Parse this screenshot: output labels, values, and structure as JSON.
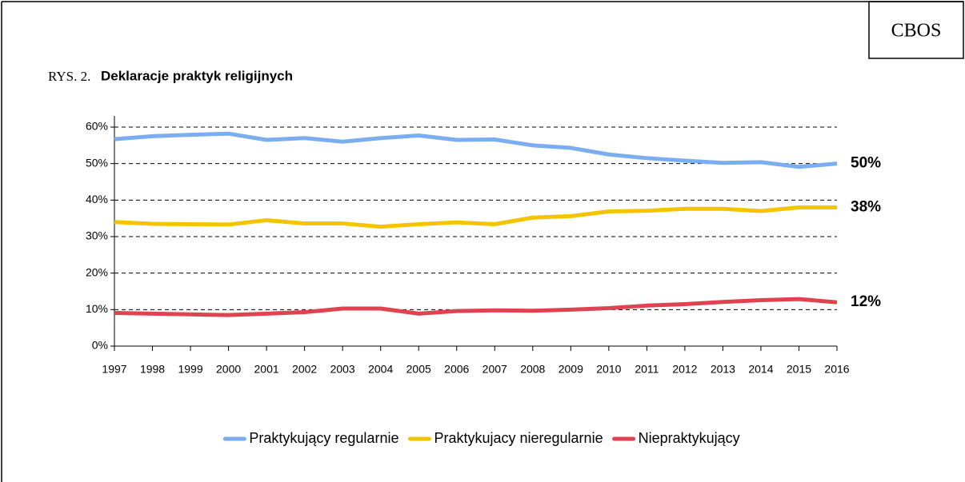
{
  "chart_data": {
    "type": "line",
    "source": "CBOS",
    "figure_label": "RYS. 2.",
    "title": "Deklaracje praktyk religijnych",
    "categories": [
      "1997",
      "1998",
      "1999",
      "2000",
      "2001",
      "2002",
      "2003",
      "2004",
      "2005",
      "2006",
      "2007",
      "2008",
      "2009",
      "2010",
      "2011",
      "2012",
      "2013",
      "2014",
      "2015",
      "2016"
    ],
    "series": [
      {
        "name": "Praktykujący regularnie",
        "color": "#7aaef0",
        "values": [
          56.7,
          57.5,
          57.9,
          58.2,
          56.5,
          57,
          56,
          57,
          57.7,
          56.5,
          56.6,
          55,
          54.3,
          52.5,
          51.5,
          50.8,
          50.2,
          50.4,
          49.1,
          50
        ],
        "value_labels": [
          null,
          null,
          null,
          null,
          null,
          null,
          null,
          null,
          null,
          null,
          null,
          null,
          null,
          null,
          null,
          null,
          null,
          null,
          null,
          "50%"
        ]
      },
      {
        "name": "Praktykujacy nieregularnie",
        "color": "#f5c400",
        "values": [
          34,
          33.5,
          33.4,
          33.3,
          34.5,
          33.6,
          33.6,
          32.7,
          33.4,
          33.9,
          33.4,
          35.2,
          35.6,
          36.9,
          37.1,
          37.6,
          37.6,
          37,
          38,
          38
        ],
        "value_labels": [
          null,
          null,
          null,
          null,
          null,
          null,
          null,
          null,
          null,
          null,
          null,
          null,
          null,
          null,
          null,
          null,
          null,
          null,
          null,
          "38%"
        ]
      },
      {
        "name": "Niepraktykujący",
        "color": "#e0434f",
        "values": [
          9.1,
          8.9,
          8.7,
          8.5,
          8.9,
          9.3,
          10.3,
          10.3,
          8.9,
          9.6,
          9.8,
          9.7,
          10,
          10.4,
          11.1,
          11.5,
          12.1,
          12.6,
          12.9,
          12
        ],
        "value_labels": [
          null,
          null,
          null,
          null,
          null,
          null,
          null,
          null,
          null,
          null,
          null,
          null,
          null,
          null,
          null,
          null,
          null,
          null,
          null,
          "12%"
        ]
      }
    ],
    "ylim": [
      0,
      60
    ],
    "yticks": [
      {
        "value": 0,
        "label": "0%"
      },
      {
        "value": 10,
        "label": "10%"
      },
      {
        "value": 20,
        "label": "20%"
      },
      {
        "value": 30,
        "label": "30%"
      },
      {
        "value": 40,
        "label": "40%"
      },
      {
        "value": 50,
        "label": "50%"
      },
      {
        "value": 60,
        "label": "60%"
      }
    ],
    "grid": true,
    "legend": "bottom"
  }
}
